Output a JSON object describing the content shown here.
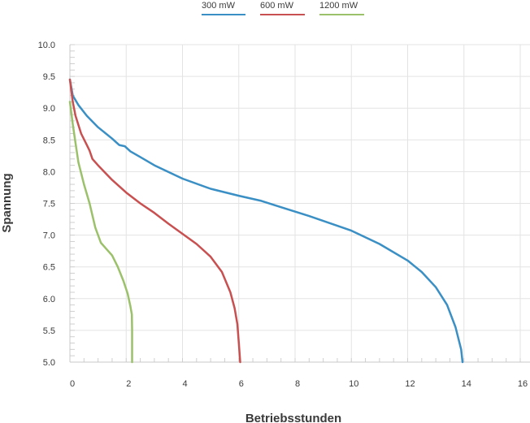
{
  "chart_data": {
    "type": "line",
    "xlabel": "Betriebsstunden",
    "ylabel": "Spannung",
    "xlim": [
      0,
      16
    ],
    "ylim": [
      5.0,
      10.0
    ],
    "x_ticks": [
      "0",
      "2",
      "4",
      "6",
      "8",
      "10",
      "12",
      "14",
      "16"
    ],
    "y_ticks": [
      "10.0",
      "9.5",
      "9.0",
      "8.5",
      "8.0",
      "7.5",
      "7.0",
      "6.5",
      "6.0",
      "5.5",
      "5.0"
    ],
    "grid": true,
    "legend_position": "top-center",
    "series": [
      {
        "name": "300 mW",
        "color": "#3a8fc4",
        "points": [
          [
            0,
            9.45
          ],
          [
            0.1,
            9.2
          ],
          [
            0.3,
            9.05
          ],
          [
            0.6,
            8.88
          ],
          [
            1.0,
            8.7
          ],
          [
            1.5,
            8.52
          ],
          [
            1.75,
            8.42
          ],
          [
            1.95,
            8.4
          ],
          [
            2.15,
            8.32
          ],
          [
            2.5,
            8.23
          ],
          [
            3.0,
            8.1
          ],
          [
            4.0,
            7.89
          ],
          [
            5.0,
            7.73
          ],
          [
            6.0,
            7.62
          ],
          [
            6.8,
            7.54
          ],
          [
            7.5,
            7.44
          ],
          [
            8.5,
            7.3
          ],
          [
            10.0,
            7.07
          ],
          [
            11.0,
            6.86
          ],
          [
            12.0,
            6.6
          ],
          [
            12.5,
            6.42
          ],
          [
            13.0,
            6.18
          ],
          [
            13.4,
            5.9
          ],
          [
            13.7,
            5.55
          ],
          [
            13.9,
            5.2
          ],
          [
            13.95,
            5.0
          ]
        ]
      },
      {
        "name": "600 mW",
        "color": "#c85050",
        "points": [
          [
            0,
            9.45
          ],
          [
            0.1,
            9.1
          ],
          [
            0.2,
            8.88
          ],
          [
            0.4,
            8.6
          ],
          [
            0.6,
            8.42
          ],
          [
            0.7,
            8.33
          ],
          [
            0.8,
            8.2
          ],
          [
            1.0,
            8.1
          ],
          [
            1.5,
            7.87
          ],
          [
            2.0,
            7.67
          ],
          [
            2.5,
            7.5
          ],
          [
            3.0,
            7.35
          ],
          [
            3.5,
            7.18
          ],
          [
            4.0,
            7.02
          ],
          [
            4.5,
            6.86
          ],
          [
            5.0,
            6.66
          ],
          [
            5.4,
            6.42
          ],
          [
            5.7,
            6.1
          ],
          [
            5.85,
            5.85
          ],
          [
            5.95,
            5.6
          ],
          [
            6.0,
            5.3
          ],
          [
            6.05,
            5.0
          ]
        ]
      },
      {
        "name": "1200 mW",
        "color": "#9bc16a",
        "points": [
          [
            0,
            9.1
          ],
          [
            0.1,
            8.75
          ],
          [
            0.2,
            8.45
          ],
          [
            0.3,
            8.15
          ],
          [
            0.5,
            7.8
          ],
          [
            0.7,
            7.5
          ],
          [
            0.9,
            7.12
          ],
          [
            1.1,
            6.88
          ],
          [
            1.3,
            6.78
          ],
          [
            1.5,
            6.68
          ],
          [
            1.7,
            6.5
          ],
          [
            1.9,
            6.28
          ],
          [
            2.05,
            6.08
          ],
          [
            2.15,
            5.88
          ],
          [
            2.2,
            5.75
          ],
          [
            2.21,
            5.5
          ],
          [
            2.21,
            5.0
          ]
        ]
      }
    ]
  }
}
